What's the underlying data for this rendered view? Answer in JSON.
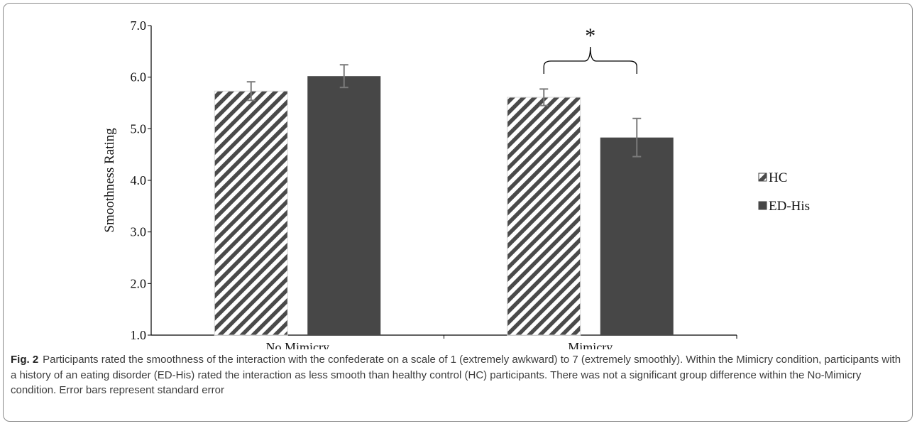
{
  "chart_data": {
    "type": "bar",
    "ylabel": "Smoothness Rating",
    "xlabel": "",
    "ylim": [
      1.0,
      7.0
    ],
    "yticks": [
      "1.0",
      "2.0",
      "3.0",
      "4.0",
      "5.0",
      "6.0",
      "7.0"
    ],
    "categories": [
      "No Mimicry",
      "Mimicry"
    ],
    "series": [
      {
        "name": "HC",
        "values": [
          5.73,
          5.61
        ],
        "errors": [
          0.18,
          0.16
        ],
        "pattern": "diagonal-hatch",
        "color": "#4a4a4a"
      },
      {
        "name": "ED-His",
        "values": [
          6.02,
          4.83
        ],
        "errors": [
          0.22,
          0.37
        ],
        "pattern": "solid",
        "color": "#474747"
      }
    ],
    "annotation": {
      "text": "*",
      "category": "Mimicry",
      "type": "bracket"
    },
    "legend_position": "right",
    "grid": false
  },
  "caption": {
    "label": "Fig. 2",
    "text": "Participants rated the smoothness of the interaction with the confederate on a scale of 1 (extremely awkward) to 7 (extremely smoothly). Within the Mimicry condition, participants with a history of an eating disorder (ED-His) rated the interaction as less smooth than healthy control (HC) participants. There was not a significant group difference within the No-Mimicry condition. Error bars represent standard error"
  }
}
